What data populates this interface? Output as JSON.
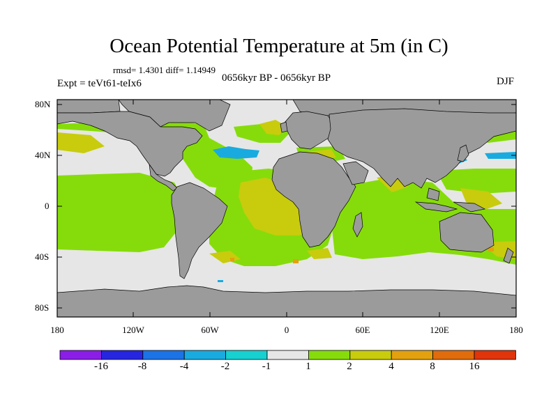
{
  "title": "Ocean Potential Temperature at 5m (in C)",
  "stats": "rmsd= 1.4301 diff= 1.14949",
  "experiment": "Expt = teVt61-teIx6",
  "period": "0656kyr BP - 0656kyr BP",
  "season": "DJF",
  "lat_labels": [
    "80N",
    "40N",
    "0",
    "40S",
    "80S"
  ],
  "lon_labels": [
    "180",
    "120W",
    "60W",
    "0",
    "60E",
    "120E",
    "180"
  ],
  "colorbar": {
    "colors": [
      "#8a1ee6",
      "#2626e0",
      "#1c73e6",
      "#19abdf",
      "#17d0d0",
      "#e6e6e6",
      "#86dc0a",
      "#c8cc0c",
      "#e3a10f",
      "#e06c0c",
      "#e0340a"
    ],
    "labels": [
      "-16",
      "-8",
      "-4",
      "-2",
      "-1",
      "1",
      "2",
      "4",
      "8",
      "16"
    ]
  },
  "colors": {
    "land": "#9b9b9b",
    "neutral": "#e6e6e6",
    "warm_small": "#86dc0a",
    "warm_medium": "#c8cc0c",
    "warm_large": "#e3a10f",
    "cool": "#19abdf"
  }
}
